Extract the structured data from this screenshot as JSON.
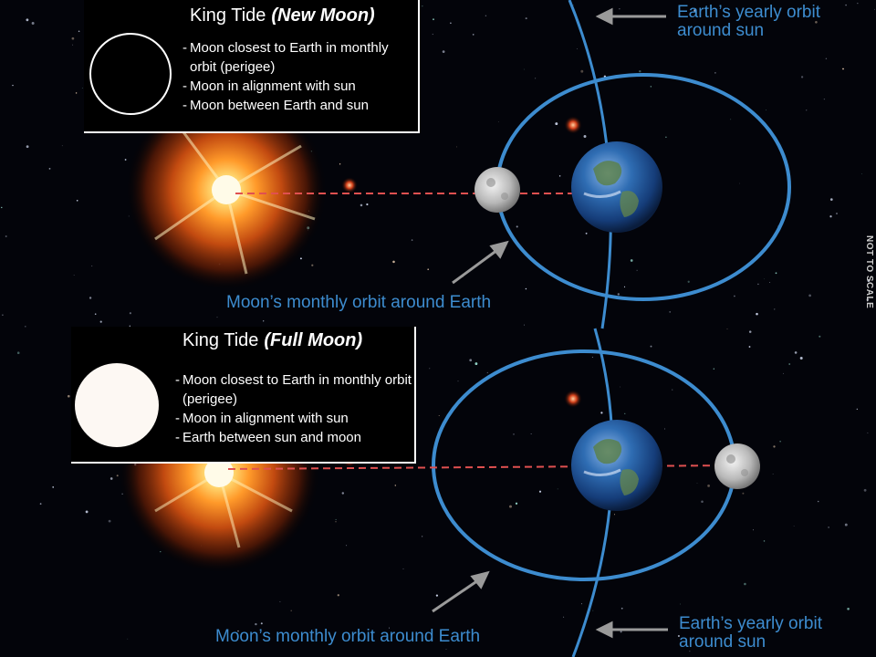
{
  "panels": [
    {
      "title": "King Tide",
      "phase": "(New Moon)",
      "bullets": [
        "Moon closest to Earth in monthly orbit (perigee)",
        "Moon in alignment with sun",
        "Moon between Earth and sun"
      ],
      "moon_orbit_label": "Moon’s monthly orbit around Earth",
      "earth_orbit_label": "Earth’s yearly orbit around sun"
    },
    {
      "title": "King Tide",
      "phase": "(Full Moon)",
      "bullets": [
        "Moon closest to Earth in monthly orbit (perigee)",
        "Moon in alignment with sun",
        "Earth between sun and moon"
      ],
      "moon_orbit_label": "Moon’s monthly orbit around Earth",
      "earth_orbit_label": "Earth’s yearly orbit around sun"
    }
  ],
  "scale_note": "NOT TO SCALE",
  "colors": {
    "orbit": "#3d8ccf",
    "alignment_line": "#e05050",
    "arrow": "#9a9a9a",
    "legend_border": "#ffffff"
  }
}
